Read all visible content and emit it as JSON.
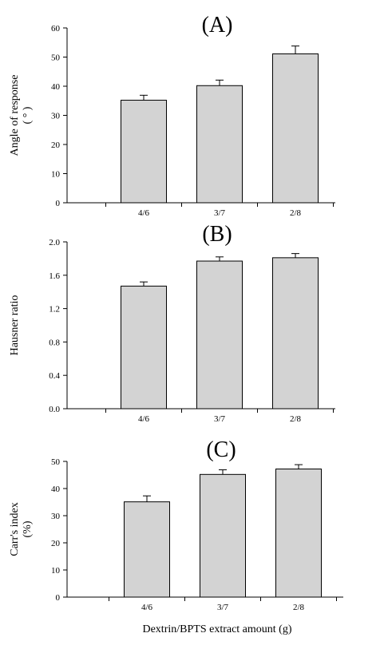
{
  "xlabel": "Dextrin/BPTS extract amount (g)",
  "chart_data": [
    {
      "type": "bar",
      "panel_label": "(A)",
      "categories": [
        "4/6",
        "3/7",
        "2/8"
      ],
      "values": [
        35.2,
        40.2,
        51.1
      ],
      "errors": [
        1.7,
        1.9,
        2.7
      ],
      "ylabel_lines": [
        "Angle of response",
        "( ° )"
      ],
      "ylim": [
        0,
        60
      ],
      "yticks": [
        "0",
        "10",
        "20",
        "30",
        "40",
        "50",
        "60"
      ],
      "grid": false,
      "bar_color": "#d3d3d3"
    },
    {
      "type": "bar",
      "panel_label": "(B)",
      "categories": [
        "4/6",
        "3/7",
        "2/8"
      ],
      "values": [
        1.47,
        1.77,
        1.81
      ],
      "errors": [
        0.05,
        0.05,
        0.05
      ],
      "ylabel_lines": [
        "Hausner ratio"
      ],
      "ylim": [
        0,
        2.0
      ],
      "yticks": [
        "0.0",
        "0.4",
        "0.8",
        "1.2",
        "1.6",
        "2.0"
      ],
      "grid": false,
      "bar_color": "#d3d3d3"
    },
    {
      "type": "bar",
      "panel_label": "(C)",
      "categories": [
        "4/6",
        "3/7",
        "2/8"
      ],
      "values": [
        35.1,
        45.2,
        47.2
      ],
      "errors": [
        2.2,
        1.7,
        1.6
      ],
      "ylabel_lines": [
        "Carr's index",
        "(%)"
      ],
      "ylim": [
        0,
        50
      ],
      "yticks": [
        "0",
        "10",
        "20",
        "30",
        "40",
        "50"
      ],
      "grid": false,
      "bar_color": "#d3d3d3"
    }
  ]
}
